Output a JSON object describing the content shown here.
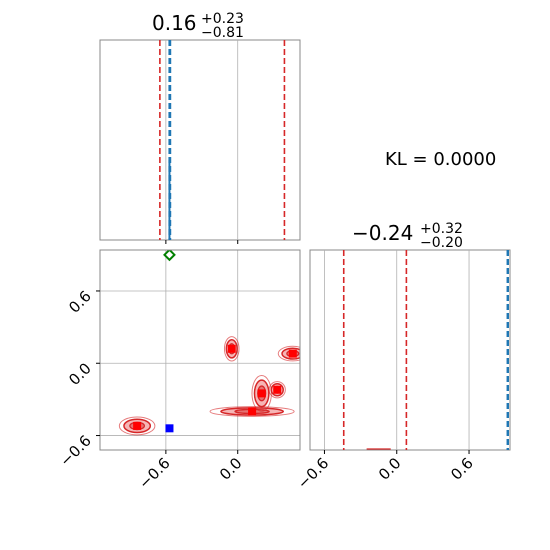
{
  "chart_data": {
    "type": "corner",
    "annotation": "KL = 0.0000",
    "colors": {
      "posterior": "#d62728",
      "reference": "#1f77b4",
      "blue_marker": "#0000ff",
      "green_marker": "#008000",
      "grid": "#b0b0b0",
      "frame": "#888888"
    },
    "panels": [
      {
        "id": "marginal-1",
        "kind": "histogram",
        "title": {
          "value": "0.16",
          "plus": "+0.23",
          "minus": "−0.81"
        },
        "xlim": [
          -1.15,
          0.52
        ],
        "quantile_lines": [
          -0.65,
          0.39
        ],
        "reference_line": -0.57,
        "reference_lines": [
          -0.572,
          -0.562
        ],
        "grid_x": [
          -0.6,
          0.0
        ]
      },
      {
        "id": "joint",
        "kind": "scatter_contour",
        "xlim": [
          -1.15,
          0.52
        ],
        "ylim": [
          -0.72,
          0.94
        ],
        "xticks": [
          -0.6,
          0.0
        ],
        "yticks": [
          -0.6,
          0.0,
          0.6
        ],
        "xtick_labels": [
          "−0.6",
          "0.0"
        ],
        "ytick_labels": [
          "−0.6",
          "0.0",
          "0.6"
        ],
        "clusters": [
          {
            "x": -0.84,
            "y": -0.52,
            "sx": 0.11,
            "sy": 0.055
          },
          {
            "x": -0.05,
            "y": 0.12,
            "sx": 0.045,
            "sy": 0.075
          },
          {
            "x": 0.12,
            "y": -0.4,
            "sx": 0.26,
            "sy": 0.03
          },
          {
            "x": 0.2,
            "y": -0.25,
            "sx": 0.06,
            "sy": 0.11
          },
          {
            "x": 0.33,
            "y": -0.22,
            "sx": 0.05,
            "sy": 0.05
          },
          {
            "x": 0.46,
            "y": 0.08,
            "sx": 0.09,
            "sy": 0.045
          }
        ],
        "markers": [
          {
            "x": -0.57,
            "y": -0.54,
            "shape": "square",
            "color": "#0000ff"
          },
          {
            "x": -0.57,
            "y": 0.9,
            "shape": "diamond",
            "color": "#008000"
          }
        ]
      },
      {
        "id": "marginal-2",
        "kind": "histogram",
        "title": {
          "value": "−0.24",
          "plus": "+0.32",
          "minus": "−0.20"
        },
        "xlim": [
          -0.72,
          0.94
        ],
        "xticks": [
          -0.6,
          0.0,
          0.6
        ],
        "xtick_labels": [
          "−0.6",
          "0.0",
          "0.6"
        ],
        "quantile_lines": [
          -0.44,
          0.08
        ],
        "reference_line": 0.92,
        "reference_lines": [
          0.918,
          0.925
        ]
      }
    ]
  }
}
